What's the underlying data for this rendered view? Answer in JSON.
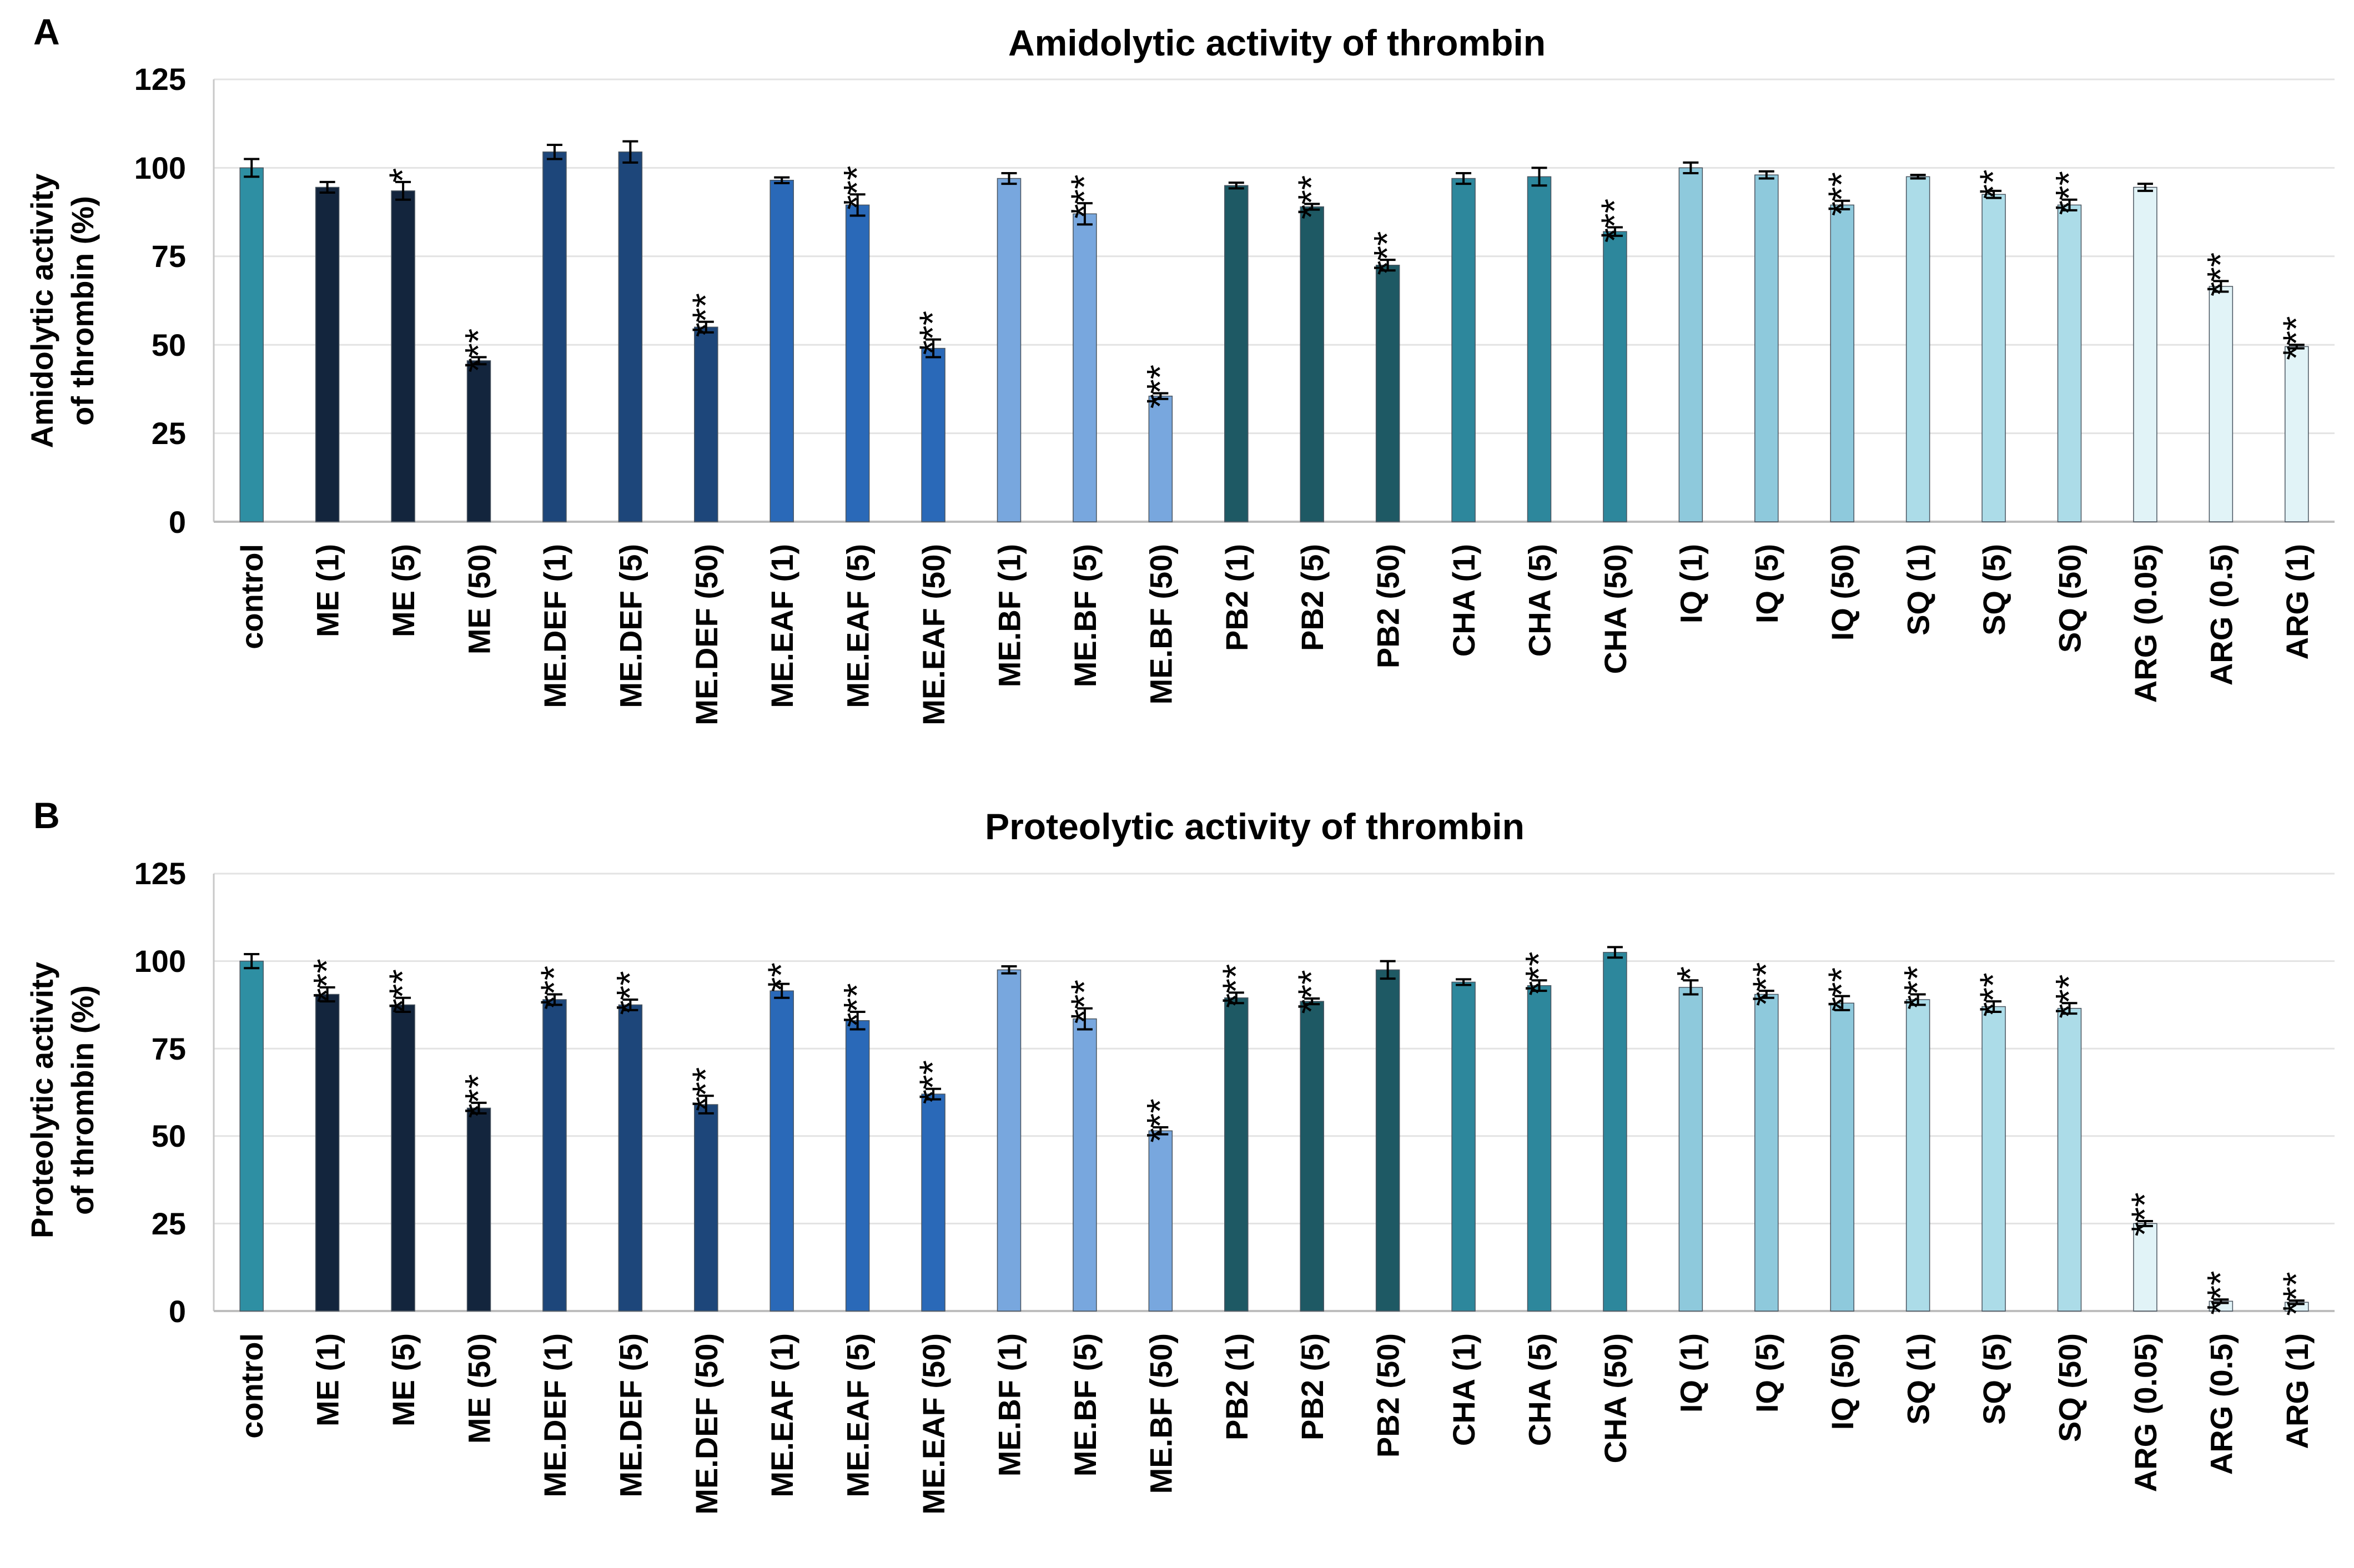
{
  "chart_data": [
    {
      "type": "bar",
      "panel_label": "A",
      "title": "Amidolytic activity of thrombin",
      "ylabel_line1": "Amidolytic activity",
      "ylabel_line2": "of thrombin (%)",
      "xlabel": "",
      "ylim": [
        0,
        125
      ],
      "yticks": [
        "0",
        "25",
        "50",
        "75",
        "100",
        "125"
      ],
      "grid": true,
      "categories": [
        "control",
        "ME (1)",
        "ME (5)",
        "ME (50)",
        "ME.DEF (1)",
        "ME.DEF (5)",
        "ME.DEF (50)",
        "ME.EAF (1)",
        "ME.EAF (5)",
        "ME.EAF (50)",
        "ME.BF (1)",
        "ME.BF (5)",
        "ME.BF (50)",
        "PB2 (1)",
        "PB2 (5)",
        "PB2 (50)",
        "CHA (1)",
        "CHA (5)",
        "CHA (50)",
        "IQ (1)",
        "IQ (5)",
        "IQ (50)",
        "SQ (1)",
        "SQ (5)",
        "SQ (50)",
        "ARG (0.05)",
        "ARG (0.5)",
        "ARG (1)"
      ],
      "values": [
        100,
        94.5,
        93.5,
        45.5,
        104.5,
        104.5,
        55,
        96.5,
        89.5,
        49,
        97,
        87,
        35.5,
        95,
        89,
        72.5,
        97,
        97.5,
        82,
        100,
        98,
        89.5,
        97.5,
        92.5,
        89.5,
        94.5,
        66.5,
        49.5
      ],
      "errors": [
        2.5,
        1.5,
        2.5,
        1,
        2,
        3,
        1.5,
        0.8,
        3,
        2.5,
        1.5,
        3,
        0.8,
        0.8,
        0.8,
        1.5,
        1.5,
        2.5,
        1.2,
        1.5,
        1,
        1.2,
        0.5,
        1,
        1.5,
        1,
        1.5,
        0.5
      ],
      "significance": [
        "",
        "",
        "*",
        "***",
        "",
        "",
        "***",
        "",
        "***",
        "***",
        "",
        "***",
        "***",
        "",
        "***",
        "***",
        "",
        "",
        "***",
        "",
        "",
        "***",
        "",
        "**",
        "***",
        "",
        "***",
        "***"
      ],
      "colors": [
        "#2e8fa3",
        "#13253d",
        "#13253d",
        "#13253d",
        "#1d467a",
        "#1d467a",
        "#1d467a",
        "#2a69b8",
        "#2a69b8",
        "#2a69b8",
        "#78a7de",
        "#78a7de",
        "#78a7de",
        "#1e5964",
        "#1e5964",
        "#1e5964",
        "#2d879c",
        "#2d879c",
        "#2d879c",
        "#8ec9dc",
        "#8ec9dc",
        "#8ec9dc",
        "#acdce8",
        "#acdce8",
        "#acdce8",
        "#e1f3f7",
        "#e1f3f7",
        "#e1f3f7"
      ]
    },
    {
      "type": "bar",
      "panel_label": "B",
      "title": "Proteolytic activity of thrombin",
      "ylabel_line1": "Proteolytic activity",
      "ylabel_line2": "of thrombin (%)",
      "xlabel": "",
      "ylim": [
        0,
        125
      ],
      "yticks": [
        "0",
        "25",
        "50",
        "75",
        "100",
        "125"
      ],
      "grid": true,
      "categories": [
        "control",
        "ME (1)",
        "ME (5)",
        "ME (50)",
        "ME.DEF (1)",
        "ME.DEF (5)",
        "ME.DEF (50)",
        "ME.EAF (1)",
        "ME.EAF (5)",
        "ME.EAF (50)",
        "ME.BF (1)",
        "ME.BF (5)",
        "ME.BF (50)",
        "PB2 (1)",
        "PB2 (5)",
        "PB2 (50)",
        "CHA (1)",
        "CHA (5)",
        "CHA (50)",
        "IQ (1)",
        "IQ (5)",
        "IQ (50)",
        "SQ (1)",
        "SQ (5)",
        "SQ (50)",
        "ARG (0.05)",
        "ARG (0.5)",
        "ARG (1)"
      ],
      "values": [
        100,
        90.5,
        87.5,
        58,
        89,
        87.5,
        59,
        91.5,
        83,
        62,
        97.5,
        83.5,
        51.5,
        89.5,
        88.5,
        97.5,
        94,
        93,
        102.5,
        92.5,
        90.5,
        88,
        89,
        87,
        86.5,
        25,
        2.8,
        2.5
      ],
      "errors": [
        2,
        2,
        2,
        1.5,
        1.5,
        1.5,
        2.5,
        2,
        2.5,
        1.5,
        1,
        3,
        1,
        1.5,
        0.8,
        2.5,
        0.8,
        1.5,
        1.5,
        2,
        1,
        2,
        1.5,
        1.5,
        1.5,
        0.7,
        0.5,
        0.5
      ],
      "significance": [
        "",
        "***",
        "***",
        "***",
        "***",
        "***",
        "***",
        "**",
        "***",
        "***",
        "",
        "***",
        "***",
        "***",
        "***",
        "",
        "",
        "***",
        "",
        "*",
        "***",
        "***",
        "***",
        "***",
        "***",
        "***",
        "***",
        "***"
      ],
      "colors": [
        "#2e8fa3",
        "#13253d",
        "#13253d",
        "#13253d",
        "#1d467a",
        "#1d467a",
        "#1d467a",
        "#2a69b8",
        "#2a69b8",
        "#2a69b8",
        "#78a7de",
        "#78a7de",
        "#78a7de",
        "#1e5964",
        "#1e5964",
        "#1e5964",
        "#2d879c",
        "#2d879c",
        "#2d879c",
        "#8ec9dc",
        "#8ec9dc",
        "#8ec9dc",
        "#acdce8",
        "#acdce8",
        "#acdce8",
        "#e1f3f7",
        "#e1f3f7",
        "#e1f3f7"
      ]
    }
  ]
}
